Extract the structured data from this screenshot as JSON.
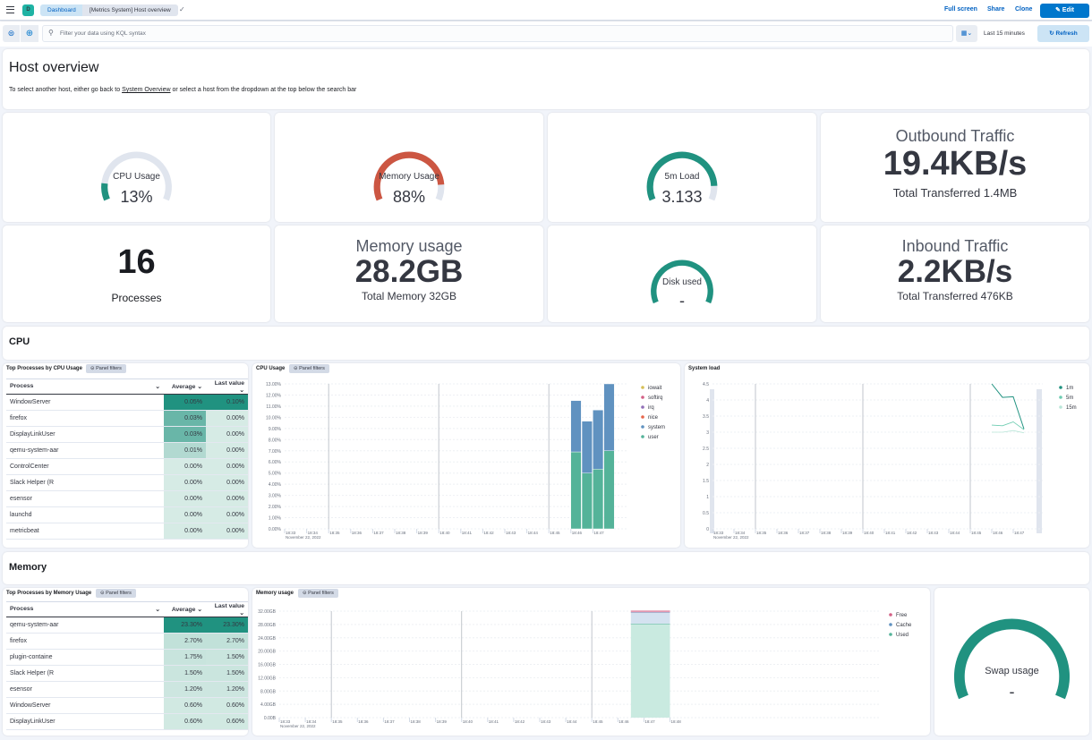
{
  "header": {
    "avatar": "D",
    "breadcrumbs": [
      "Dashboard",
      "[Metrics System] Host overview"
    ],
    "actions": [
      "Full screen",
      "Share",
      "Clone"
    ],
    "edit": "Edit"
  },
  "query": {
    "placeholder": "Filter your data using KQL syntax",
    "time": "Last 15 minutes",
    "refresh": "Refresh"
  },
  "intro": {
    "title": "Host overview",
    "text_before": "To select another host, either go back to ",
    "link": "System Overview",
    "text_after": " or select a host from the dropdown at the top below the search bar"
  },
  "gauges": [
    {
      "label": "CPU Usage",
      "value": "13%",
      "fraction": 0.13,
      "color": "#209280"
    },
    {
      "label": "Memory Usage",
      "value": "88%",
      "fraction": 0.88,
      "color": "#cc5642"
    },
    {
      "label": "5m Load",
      "value": "3.133",
      "fraction": 0.89,
      "color": "#209280"
    },
    {
      "label": "Disk used",
      "value": "-",
      "fraction": 1,
      "color": "#209280"
    },
    {
      "label": "Swap usage",
      "value": "-",
      "fraction": 1,
      "color": "#209280"
    }
  ],
  "metrics": {
    "outbound": {
      "title": "Outbound Traffic",
      "value": "19.4KB/s",
      "sub": "Total Transferred 1.4MB"
    },
    "processes": {
      "value": "16",
      "label": "Processes"
    },
    "memory": {
      "title": "Memory usage",
      "value": "28.2GB",
      "sub": "Total Memory 32GB"
    },
    "inbound": {
      "title": "Inbound Traffic",
      "value": "2.2KB/s",
      "sub": "Total Transferred 476KB"
    }
  },
  "sections": {
    "cpu": "CPU",
    "memory": "Memory"
  },
  "panel_filters": "Panel filters",
  "cpu_table": {
    "title": "Top Processes by CPU Usage",
    "columns": [
      "Process",
      "Average",
      "Last value"
    ],
    "rows": [
      [
        "WindowServer",
        "0.05%",
        "0.10%"
      ],
      [
        "firefox",
        "0.03%",
        "0.00%"
      ],
      [
        "DisplayLinkUser",
        "0.03%",
        "0.00%"
      ],
      [
        "qemu-system-aar",
        "0.01%",
        "0.00%"
      ],
      [
        "ControlCenter",
        "0.00%",
        "0.00%"
      ],
      [
        "Slack Helper (R",
        "0.00%",
        "0.00%"
      ],
      [
        "esensor",
        "0.00%",
        "0.00%"
      ],
      [
        "launchd",
        "0.00%",
        "0.00%"
      ],
      [
        "metricbeat",
        "0.00%",
        "0.00%"
      ]
    ]
  },
  "mem_table": {
    "title": "Top Processes by Memory Usage",
    "columns": [
      "Process",
      "Average",
      "Last value"
    ],
    "rows": [
      [
        "qemu-system-aar",
        "23.30%",
        "23.30%"
      ],
      [
        "firefox",
        "2.70%",
        "2.70%"
      ],
      [
        "plugin-containe",
        "1.75%",
        "1.50%"
      ],
      [
        "Slack Helper (R",
        "1.50%",
        "1.50%"
      ],
      [
        "esensor",
        "1.20%",
        "1.20%"
      ],
      [
        "WindowServer",
        "0.60%",
        "0.60%"
      ],
      [
        "DisplayLinkUser",
        "0.60%",
        "0.60%"
      ]
    ]
  },
  "chart_data": [
    {
      "type": "bar",
      "stacked": true,
      "title": "CPU Usage",
      "x": [
        "18:46:30",
        "18:47:00",
        "18:47:30",
        "18:48:00"
      ],
      "xticks": [
        "18:33",
        "18:34",
        "18:35",
        "18:36",
        "18:37",
        "18:38",
        "18:39",
        "18:40",
        "18:41",
        "18:42",
        "18:43",
        "18:44",
        "18:45",
        "18:46",
        "18:47"
      ],
      "date_label": "November 22, 2022",
      "yticks": [
        "0.00%",
        "1.00%",
        "2.00%",
        "3.00%",
        "4.00%",
        "5.00%",
        "6.00%",
        "7.00%",
        "8.00%",
        "9.00%",
        "10.00%",
        "11.00%",
        "12.00%",
        "13.00%"
      ],
      "ylim": [
        0,
        13
      ],
      "legend": [
        {
          "name": "iowait",
          "color": "#d6bf57"
        },
        {
          "name": "softirq",
          "color": "#d36086"
        },
        {
          "name": "irq",
          "color": "#9170b8"
        },
        {
          "name": "nice",
          "color": "#e7664c"
        },
        {
          "name": "system",
          "color": "#6092c0"
        },
        {
          "name": "user",
          "color": "#54b399"
        }
      ],
      "series": [
        {
          "name": "user",
          "color": "#54b399",
          "values": [
            6.9,
            5.0,
            5.35,
            7.0
          ]
        },
        {
          "name": "system",
          "color": "#6092c0",
          "values": [
            4.6,
            4.65,
            5.3,
            6.0
          ]
        }
      ]
    },
    {
      "type": "line",
      "title": "System load",
      "x": [
        "18:46:00",
        "18:46:30",
        "18:47:00",
        "18:47:30"
      ],
      "xticks": [
        "18:33",
        "18:34",
        "18:35",
        "18:36",
        "18:37",
        "18:38",
        "18:39",
        "18:40",
        "18:41",
        "18:42",
        "18:43",
        "18:44",
        "18:45",
        "18:46",
        "18:47"
      ],
      "date_label": "November 22, 2022",
      "yticks": [
        "0",
        "0.5",
        "1",
        "1.5",
        "2",
        "2.5",
        "3",
        "3.5",
        "4",
        "4.5"
      ],
      "ylim": [
        0,
        4.5
      ],
      "series": [
        {
          "name": "1m",
          "color": "#209280",
          "values": [
            4.5,
            4.08,
            4.1,
            3.1
          ]
        },
        {
          "name": "5m",
          "color": "#6dccb1",
          "values": [
            3.22,
            3.2,
            3.32,
            3.08
          ]
        },
        {
          "name": "15m",
          "color": "#b9e6d8",
          "values": [
            3.0,
            3.0,
            3.05,
            2.98
          ]
        }
      ]
    },
    {
      "type": "area",
      "stacked": true,
      "title": "Memory usage",
      "x": [
        "18:46:30",
        "18:48:00"
      ],
      "xticks": [
        "18:33",
        "18:34",
        "18:35",
        "18:36",
        "18:37",
        "18:38",
        "18:39",
        "18:40",
        "18:41",
        "18:42",
        "18:43",
        "18:44",
        "18:45",
        "18:46",
        "18:47",
        "18:48"
      ],
      "date_label": "November 22, 2022",
      "yticks": [
        "0.00B",
        "4.00GB",
        "8.00GB",
        "12.00GB",
        "16.00GB",
        "20.00GB",
        "24.00GB",
        "28.00GB",
        "32.00GB"
      ],
      "ylim": [
        0,
        32
      ],
      "legend": [
        {
          "name": "Free",
          "color": "#d36086"
        },
        {
          "name": "Cache",
          "color": "#6092c0"
        },
        {
          "name": "Used",
          "color": "#54b399"
        }
      ],
      "series": [
        {
          "name": "Used",
          "color": "#54b399",
          "values": [
            28.2,
            28.2
          ]
        },
        {
          "name": "Cache",
          "color": "#6092c0",
          "values": [
            3.4,
            3.4
          ]
        },
        {
          "name": "Free",
          "color": "#d36086",
          "values": [
            0.4,
            0.4
          ]
        }
      ]
    }
  ]
}
